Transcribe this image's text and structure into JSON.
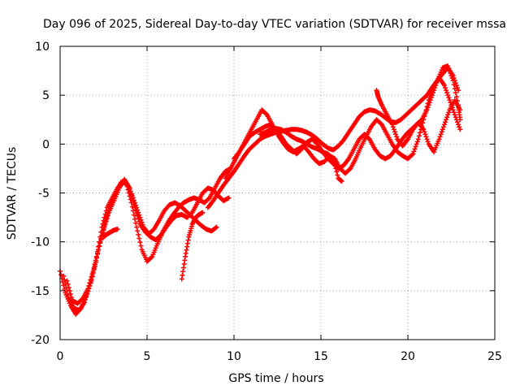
{
  "chart_data": {
    "type": "scatter",
    "title": "Day 096 of 2025, Sidereal Day-to-day VTEC variation (SDTVAR) for receiver mssa",
    "xlabel": "GPS time / hours",
    "ylabel": "SDTVAR / TECUs",
    "xlim": [
      0,
      25
    ],
    "ylim": [
      -20,
      10
    ],
    "xticks": [
      0,
      5,
      10,
      15,
      20,
      25
    ],
    "yticks": [
      -20,
      -15,
      -10,
      -5,
      0,
      5,
      10
    ],
    "xtick_labels": [
      "0",
      "5",
      "10",
      "15",
      "20",
      "25"
    ],
    "ytick_labels": [
      "-20",
      "-15",
      "-10",
      "-5",
      "0",
      "5",
      "10"
    ],
    "grid": true,
    "marker": "+",
    "color": "#ff0000",
    "series": [
      {
        "name": "track-1",
        "points": [
          [
            0.0,
            -13.0
          ],
          [
            0.3,
            -15.2
          ],
          [
            0.6,
            -16.5
          ],
          [
            0.9,
            -17.4
          ],
          [
            1.2,
            -16.8
          ],
          [
            1.5,
            -15.5
          ],
          [
            1.8,
            -14.0
          ],
          [
            2.1,
            -11.5
          ],
          [
            2.4,
            -8.5
          ],
          [
            2.7,
            -6.5
          ],
          [
            3.0,
            -5.5
          ],
          [
            3.3,
            -4.5
          ],
          [
            3.6,
            -3.8
          ],
          [
            3.9,
            -4.2
          ],
          [
            4.2,
            -5.5
          ],
          [
            4.5,
            -7.0
          ],
          [
            4.8,
            -8.5
          ],
          [
            5.1,
            -9.2
          ],
          [
            5.4,
            -8.7
          ],
          [
            5.7,
            -7.8
          ],
          [
            6.0,
            -6.8
          ],
          [
            6.3,
            -6.2
          ],
          [
            6.6,
            -6.0
          ],
          [
            6.9,
            -6.3
          ],
          [
            7.2,
            -6.8
          ],
          [
            7.5,
            -7.3
          ],
          [
            7.8,
            -7.8
          ],
          [
            8.1,
            -8.3
          ],
          [
            8.4,
            -8.7
          ],
          [
            8.7,
            -8.9
          ],
          [
            9.0,
            -8.5
          ]
        ]
      },
      {
        "name": "track-2",
        "points": [
          [
            0.2,
            -13.5
          ],
          [
            0.5,
            -15.8
          ],
          [
            0.8,
            -16.8
          ],
          [
            1.1,
            -17.0
          ],
          [
            1.4,
            -16.2
          ],
          [
            1.7,
            -14.5
          ],
          [
            2.0,
            -12.5
          ],
          [
            2.3,
            -10.0
          ],
          [
            2.6,
            -8.0
          ],
          [
            2.9,
            -6.2
          ],
          [
            3.2,
            -5.0
          ],
          [
            3.5,
            -3.9
          ],
          [
            3.8,
            -4.0
          ],
          [
            4.1,
            -6.0
          ],
          [
            4.4,
            -8.5
          ],
          [
            4.7,
            -10.8
          ],
          [
            5.0,
            -12.0
          ],
          [
            5.3,
            -11.5
          ],
          [
            5.6,
            -10.2
          ],
          [
            5.9,
            -9.0
          ],
          [
            6.2,
            -8.0
          ],
          [
            6.5,
            -7.2
          ],
          [
            6.8,
            -6.5
          ],
          [
            7.1,
            -6.0
          ],
          [
            7.4,
            -5.7
          ],
          [
            7.7,
            -5.5
          ],
          [
            8.0,
            -5.7
          ],
          [
            8.3,
            -6.0
          ],
          [
            8.6,
            -5.5
          ],
          [
            8.9,
            -4.5
          ],
          [
            9.2,
            -3.5
          ],
          [
            9.5,
            -2.8
          ],
          [
            9.8,
            -2.5
          ]
        ]
      },
      {
        "name": "track-3",
        "points": [
          [
            0.4,
            -14.0
          ],
          [
            0.7,
            -16.0
          ],
          [
            1.0,
            -16.3
          ],
          [
            1.3,
            -15.8
          ],
          [
            1.6,
            -14.8
          ],
          [
            1.9,
            -13.0
          ],
          [
            2.2,
            -10.8
          ],
          [
            2.5,
            -8.8
          ],
          [
            2.8,
            -7.0
          ],
          [
            3.1,
            -5.8
          ],
          [
            3.4,
            -4.5
          ],
          [
            3.7,
            -3.6
          ],
          [
            4.0,
            -4.5
          ],
          [
            4.3,
            -6.5
          ],
          [
            4.6,
            -8.2
          ],
          [
            4.9,
            -9.0
          ],
          [
            5.2,
            -9.5
          ],
          [
            5.5,
            -9.8
          ],
          [
            5.8,
            -9.3
          ],
          [
            6.1,
            -8.5
          ],
          [
            6.4,
            -7.8
          ],
          [
            6.7,
            -7.3
          ],
          [
            7.0,
            -7.2
          ],
          [
            7.3,
            -7.5
          ],
          [
            7.6,
            -7.0
          ],
          [
            7.9,
            -6.0
          ],
          [
            8.2,
            -5.0
          ],
          [
            8.5,
            -4.5
          ],
          [
            8.8,
            -4.7
          ],
          [
            9.1,
            -5.3
          ],
          [
            9.4,
            -5.8
          ],
          [
            9.7,
            -5.5
          ]
        ]
      },
      {
        "name": "track-4",
        "points": [
          [
            2.5,
            -9.5
          ],
          [
            2.7,
            -9.2
          ],
          [
            2.9,
            -9.0
          ],
          [
            3.1,
            -8.8
          ],
          [
            3.3,
            -8.7
          ]
        ]
      },
      {
        "name": "track-5",
        "points": [
          [
            7.0,
            -13.8
          ],
          [
            7.2,
            -11.5
          ],
          [
            7.4,
            -9.5
          ],
          [
            7.6,
            -8.2
          ],
          [
            7.8,
            -7.5
          ],
          [
            8.0,
            -7.2
          ],
          [
            8.2,
            -7.0
          ]
        ]
      },
      {
        "name": "track-6",
        "points": [
          [
            8.5,
            -6.5
          ],
          [
            8.8,
            -5.8
          ],
          [
            9.1,
            -5.0
          ],
          [
            9.4,
            -4.2
          ],
          [
            9.7,
            -3.5
          ],
          [
            10.0,
            -2.8
          ],
          [
            10.3,
            -2.0
          ],
          [
            10.6,
            -1.2
          ],
          [
            10.9,
            -0.5
          ],
          [
            11.2,
            0.0
          ],
          [
            11.5,
            0.5
          ],
          [
            11.8,
            0.8
          ],
          [
            12.1,
            1.0
          ],
          [
            12.4,
            1.2
          ],
          [
            12.7,
            1.3
          ],
          [
            13.0,
            1.4
          ],
          [
            13.3,
            1.5
          ],
          [
            13.6,
            1.5
          ],
          [
            13.9,
            1.4
          ],
          [
            14.2,
            1.2
          ],
          [
            14.5,
            0.9
          ],
          [
            14.8,
            0.5
          ],
          [
            15.1,
            0.0
          ],
          [
            15.4,
            -0.4
          ],
          [
            15.7,
            -0.6
          ],
          [
            16.0,
            -0.2
          ],
          [
            16.3,
            0.4
          ],
          [
            16.6,
            1.2
          ],
          [
            16.9,
            2.0
          ],
          [
            17.2,
            2.8
          ],
          [
            17.5,
            3.3
          ],
          [
            17.8,
            3.5
          ],
          [
            18.1,
            3.4
          ],
          [
            18.4,
            3.1
          ],
          [
            18.7,
            2.7
          ],
          [
            19.0,
            2.3
          ],
          [
            19.3,
            2.2
          ],
          [
            19.6,
            2.5
          ],
          [
            19.9,
            3.0
          ],
          [
            20.2,
            3.5
          ],
          [
            20.5,
            4.0
          ],
          [
            20.8,
            4.5
          ],
          [
            21.1,
            5.0
          ],
          [
            21.4,
            5.8
          ],
          [
            21.7,
            6.5
          ],
          [
            22.0,
            7.2
          ],
          [
            22.3,
            7.8
          ],
          [
            22.6,
            7.0
          ],
          [
            22.9,
            5.5
          ]
        ]
      },
      {
        "name": "track-7",
        "points": [
          [
            9.5,
            -3.5
          ],
          [
            9.8,
            -2.5
          ],
          [
            10.1,
            -1.5
          ],
          [
            10.4,
            -0.5
          ],
          [
            10.7,
            0.5
          ],
          [
            11.0,
            1.5
          ],
          [
            11.3,
            2.5
          ],
          [
            11.6,
            3.5
          ],
          [
            11.9,
            3.0
          ],
          [
            12.2,
            2.0
          ],
          [
            12.5,
            1.0
          ],
          [
            12.8,
            0.2
          ],
          [
            13.1,
            -0.5
          ],
          [
            13.4,
            -0.8
          ],
          [
            13.7,
            -0.5
          ],
          [
            14.0,
            -0.2
          ],
          [
            14.3,
            -0.8
          ],
          [
            14.6,
            -1.5
          ],
          [
            14.9,
            -2.0
          ],
          [
            15.2,
            -1.8
          ],
          [
            15.5,
            -1.2
          ],
          [
            15.8,
            -1.5
          ],
          [
            16.1,
            -2.5
          ],
          [
            16.4,
            -3.0
          ],
          [
            16.7,
            -2.5
          ],
          [
            17.0,
            -1.5
          ],
          [
            17.3,
            -0.3
          ],
          [
            17.6,
            0.8
          ],
          [
            17.9,
            1.8
          ],
          [
            18.2,
            2.5
          ],
          [
            18.5,
            2.0
          ],
          [
            18.8,
            1.0
          ],
          [
            19.1,
            0.0
          ],
          [
            19.4,
            -0.8
          ],
          [
            19.7,
            -1.2
          ],
          [
            20.0,
            -1.5
          ],
          [
            20.3,
            -1.0
          ],
          [
            20.6,
            0.5
          ],
          [
            20.9,
            2.5
          ],
          [
            21.2,
            4.5
          ],
          [
            21.5,
            6.0
          ],
          [
            21.8,
            6.8
          ],
          [
            22.1,
            6.0
          ],
          [
            22.4,
            4.5
          ],
          [
            22.7,
            3.0
          ],
          [
            23.0,
            1.5
          ]
        ]
      },
      {
        "name": "track-8",
        "points": [
          [
            10.0,
            -1.5
          ],
          [
            10.3,
            -0.8
          ],
          [
            10.6,
            0.0
          ],
          [
            10.9,
            0.8
          ],
          [
            11.2,
            1.2
          ],
          [
            11.5,
            1.5
          ],
          [
            11.8,
            1.8
          ],
          [
            12.1,
            2.0
          ],
          [
            12.4,
            1.5
          ],
          [
            12.7,
            0.8
          ],
          [
            13.0,
            0.0
          ],
          [
            13.3,
            -0.5
          ],
          [
            13.6,
            -1.0
          ],
          [
            13.9,
            -0.5
          ],
          [
            14.2,
            0.2
          ],
          [
            14.5,
            0.5
          ],
          [
            14.8,
            0.0
          ],
          [
            15.1,
            -0.8
          ],
          [
            15.4,
            -1.5
          ],
          [
            15.7,
            -2.0
          ],
          [
            16.0,
            -2.5
          ],
          [
            16.3,
            -2.2
          ],
          [
            16.6,
            -1.5
          ],
          [
            16.9,
            -0.5
          ],
          [
            17.2,
            0.5
          ],
          [
            17.5,
            1.0
          ],
          [
            17.8,
            0.5
          ],
          [
            18.1,
            -0.5
          ],
          [
            18.4,
            -1.2
          ],
          [
            18.7,
            -1.5
          ],
          [
            19.0,
            -1.2
          ],
          [
            19.3,
            -0.5
          ],
          [
            19.6,
            0.3
          ],
          [
            19.9,
            1.0
          ],
          [
            20.2,
            1.5
          ],
          [
            20.5,
            2.0
          ],
          [
            20.8,
            2.5
          ],
          [
            21.1,
            3.5
          ],
          [
            21.4,
            5.0
          ],
          [
            21.7,
            6.5
          ],
          [
            22.0,
            7.8
          ],
          [
            22.3,
            8.0
          ],
          [
            22.6,
            6.5
          ],
          [
            22.9,
            4.0
          ],
          [
            23.0,
            2.5
          ]
        ]
      },
      {
        "name": "track-9",
        "points": [
          [
            11.5,
            1.0
          ],
          [
            11.8,
            1.2
          ],
          [
            12.1,
            1.5
          ],
          [
            12.4,
            1.6
          ],
          [
            12.7,
            1.5
          ],
          [
            13.0,
            1.2
          ],
          [
            13.3,
            0.8
          ],
          [
            13.6,
            0.5
          ],
          [
            13.9,
            0.3
          ],
          [
            14.2,
            0.0
          ],
          [
            14.5,
            -0.3
          ],
          [
            14.8,
            -0.5
          ],
          [
            15.1,
            -0.8
          ],
          [
            15.4,
            -1.0
          ],
          [
            15.7,
            -1.5
          ],
          [
            16.0,
            -3.5
          ],
          [
            16.2,
            -3.8
          ]
        ]
      },
      {
        "name": "track-10",
        "points": [
          [
            18.2,
            5.5
          ],
          [
            18.3,
            4.8
          ],
          [
            18.5,
            4.0
          ],
          [
            18.8,
            3.0
          ],
          [
            19.1,
            2.0
          ],
          [
            19.4,
            0.5
          ],
          [
            19.7,
            -0.2
          ],
          [
            20.0,
            0.5
          ],
          [
            20.3,
            1.5
          ],
          [
            20.6,
            2.2
          ],
          [
            20.9,
            1.5
          ],
          [
            21.2,
            0.0
          ],
          [
            21.5,
            -0.8
          ],
          [
            21.8,
            0.5
          ],
          [
            22.1,
            2.0
          ],
          [
            22.4,
            3.5
          ],
          [
            22.7,
            4.5
          ],
          [
            23.0,
            3.5
          ]
        ]
      }
    ]
  }
}
